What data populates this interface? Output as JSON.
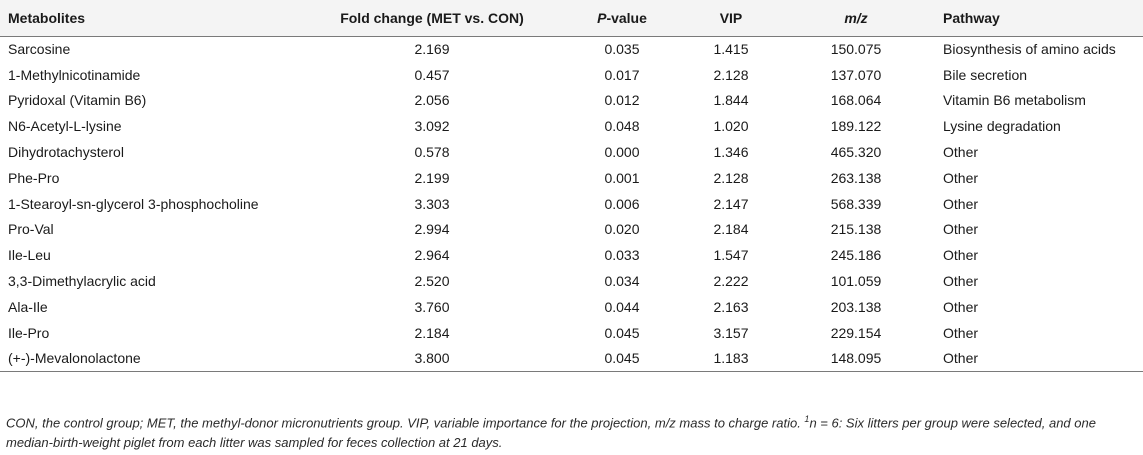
{
  "table": {
    "headers": {
      "metabolites": "Metabolites",
      "fold_change": "Fold change (MET vs. CON)",
      "p_value_italic": "P",
      "p_value_rest": "-value",
      "vip": "VIP",
      "mz": "m/z",
      "pathway": "Pathway"
    },
    "rows": [
      {
        "metabolite": "Sarcosine",
        "fold_change": "2.169",
        "p_value": "0.035",
        "vip": "1.415",
        "mz": "150.075",
        "pathway": "Biosynthesis of amino acids"
      },
      {
        "metabolite": "1-Methylnicotinamide",
        "fold_change": "0.457",
        "p_value": "0.017",
        "vip": "2.128",
        "mz": "137.070",
        "pathway": "Bile secretion"
      },
      {
        "metabolite": "Pyridoxal (Vitamin B6)",
        "fold_change": "2.056",
        "p_value": "0.012",
        "vip": "1.844",
        "mz": "168.064",
        "pathway": "Vitamin B6 metabolism"
      },
      {
        "metabolite": "N6-Acetyl-L-lysine",
        "fold_change": "3.092",
        "p_value": "0.048",
        "vip": "1.020",
        "mz": "189.122",
        "pathway": "Lysine degradation"
      },
      {
        "metabolite": "Dihydrotachysterol",
        "fold_change": "0.578",
        "p_value": "0.000",
        "vip": "1.346",
        "mz": "465.320",
        "pathway": "Other"
      },
      {
        "metabolite": "Phe-Pro",
        "fold_change": "2.199",
        "p_value": "0.001",
        "vip": "2.128",
        "mz": "263.138",
        "pathway": "Other"
      },
      {
        "metabolite": "1-Stearoyl-sn-glycerol 3-phosphocholine",
        "fold_change": "3.303",
        "p_value": "0.006",
        "vip": "2.147",
        "mz": "568.339",
        "pathway": "Other"
      },
      {
        "metabolite": "Pro-Val",
        "fold_change": "2.994",
        "p_value": "0.020",
        "vip": "2.184",
        "mz": "215.138",
        "pathway": "Other"
      },
      {
        "metabolite": "Ile-Leu",
        "fold_change": "2.964",
        "p_value": "0.033",
        "vip": "1.547",
        "mz": "245.186",
        "pathway": "Other"
      },
      {
        "metabolite": "3,3-Dimethylacrylic acid",
        "fold_change": "2.520",
        "p_value": "0.034",
        "vip": "2.222",
        "mz": "101.059",
        "pathway": "Other"
      },
      {
        "metabolite": "Ala-Ile",
        "fold_change": "3.760",
        "p_value": "0.044",
        "vip": "2.163",
        "mz": "203.138",
        "pathway": "Other"
      },
      {
        "metabolite": "Ile-Pro",
        "fold_change": "2.184",
        "p_value": "0.045",
        "vip": "3.157",
        "mz": "229.154",
        "pathway": "Other"
      },
      {
        "metabolite": "(+-)-Mevalonolactone",
        "fold_change": "3.800",
        "p_value": "0.045",
        "vip": "1.183",
        "mz": "148.095",
        "pathway": "Other"
      }
    ]
  },
  "footnote": {
    "text_a": "CON, the control group; MET, the methyl-donor micronutrients group. VIP, variable importance for the projection, m/z mass to charge ratio. ",
    "sup": "1",
    "text_b": "n = 6: Six litters per group were selected, and one median-birth-weight piglet from each litter was sampled for feces collection at 21 days."
  }
}
